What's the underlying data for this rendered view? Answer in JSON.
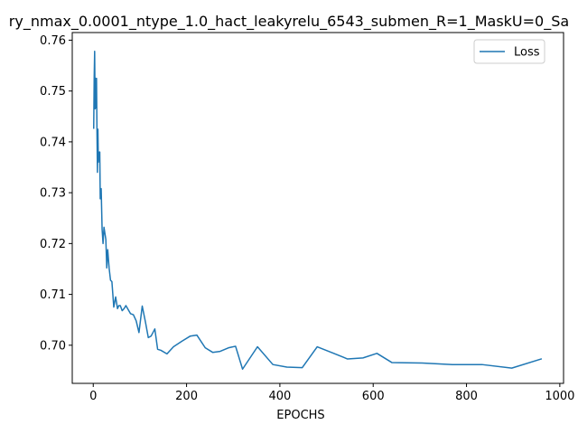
{
  "chart_data": {
    "type": "line",
    "title": "ry_nmax_0.0001_ntype_1.0_hact_leakyrelu_6543_submen_R=1_MaskU=0_Sa",
    "xlabel": "EPOCHS",
    "ylabel": "",
    "xlim": [
      -45,
      1008
    ],
    "ylim": [
      0.6925,
      0.7615
    ],
    "xticks": [
      0,
      200,
      400,
      600,
      800,
      1000
    ],
    "xtick_labels": [
      "0",
      "200",
      "400",
      "600",
      "800",
      "1000"
    ],
    "yticks": [
      0.7,
      0.71,
      0.72,
      0.73,
      0.74,
      0.75,
      0.76
    ],
    "ytick_labels": [
      "0.70",
      "0.71",
      "0.72",
      "0.73",
      "0.74",
      "0.75",
      "0.76"
    ],
    "legend": {
      "position": "upper-right",
      "entries": [
        "Loss"
      ]
    },
    "grid": false,
    "series": [
      {
        "name": "Loss",
        "color": "#1f77b4",
        "x": [
          1,
          2,
          3,
          4,
          5,
          6,
          7,
          8,
          9,
          10,
          11,
          12,
          13,
          14,
          15,
          17,
          19,
          21,
          23,
          25,
          27,
          29,
          31,
          34,
          37,
          40,
          44,
          48,
          52,
          55,
          58,
          62,
          66,
          70,
          75,
          80,
          86,
          92,
          98,
          105,
          112,
          118,
          124,
          132,
          138,
          145,
          158,
          172,
          190,
          208,
          222,
          240,
          256,
          272,
          290,
          305,
          320,
          352,
          385,
          415,
          448,
          480,
          513,
          545,
          578,
          608,
          640,
          705,
          770,
          833,
          897,
          960
        ],
        "y": [
          0.7427,
          0.7525,
          0.7578,
          0.7465,
          0.7525,
          0.7467,
          0.7525,
          0.742,
          0.734,
          0.7425,
          0.736,
          0.738,
          0.7365,
          0.738,
          0.7288,
          0.7308,
          0.7228,
          0.72,
          0.7232,
          0.722,
          0.7208,
          0.7152,
          0.7188,
          0.7152,
          0.7128,
          0.7125,
          0.7075,
          0.7095,
          0.7072,
          0.7078,
          0.7078,
          0.7068,
          0.7072,
          0.7078,
          0.707,
          0.7062,
          0.706,
          0.7048,
          0.7025,
          0.7077,
          0.7045,
          0.7015,
          0.7018,
          0.7032,
          0.6992,
          0.699,
          0.6983,
          0.6997,
          0.7008,
          0.7018,
          0.702,
          0.6995,
          0.6986,
          0.6988,
          0.6995,
          0.6998,
          0.6953,
          0.6997,
          0.6962,
          0.6957,
          0.6956,
          0.6997,
          0.6985,
          0.6973,
          0.6975,
          0.6984,
          0.6966,
          0.6965,
          0.6962,
          0.6962,
          0.6955,
          0.6973
        ]
      }
    ]
  }
}
